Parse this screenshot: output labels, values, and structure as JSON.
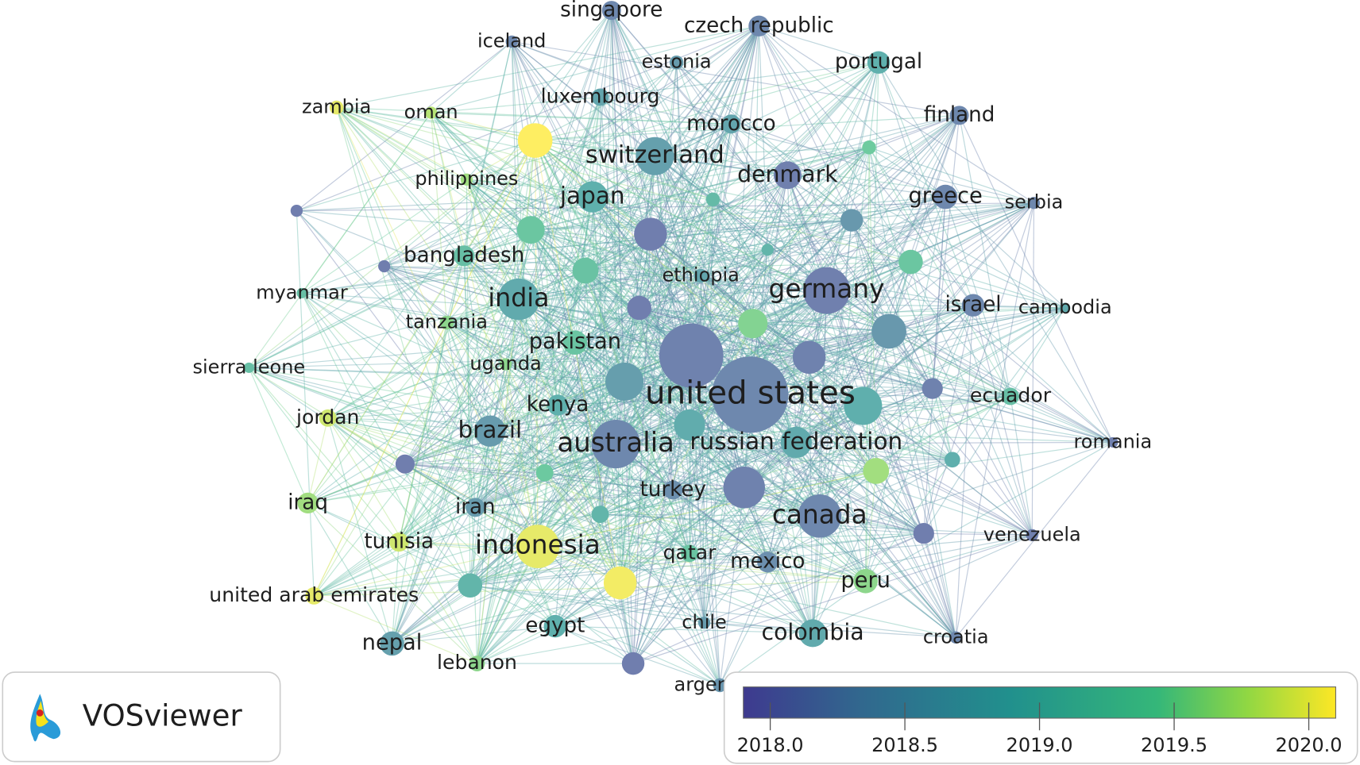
{
  "network": {
    "nodes": [
      {
        "label": "united states",
        "year": 2018.2
      },
      {
        "label": "germany",
        "year": 2018.1
      },
      {
        "label": "india",
        "year": 2018.8
      },
      {
        "label": "australia",
        "year": 2018.2
      },
      {
        "label": "canada",
        "year": 2018.2
      },
      {
        "label": "indonesia",
        "year": 2020.0
      },
      {
        "label": "switzerland",
        "year": 2018.6
      },
      {
        "label": "japan",
        "year": 2018.9
      },
      {
        "label": "brazil",
        "year": 2018.5
      },
      {
        "label": "russian federation",
        "year": 2018.8
      },
      {
        "label": "bangladesh",
        "year": 2019.2
      },
      {
        "label": "pakistan",
        "year": 2019.3
      },
      {
        "label": "kenya",
        "year": 2018.9
      },
      {
        "label": "ethiopia",
        "year": 2018.7
      },
      {
        "label": "denmark",
        "year": 2018.1
      },
      {
        "label": "greece",
        "year": 2018.2
      },
      {
        "label": "israel",
        "year": 2018.2
      },
      {
        "label": "finland",
        "year": 2018.2
      },
      {
        "label": "portugal",
        "year": 2018.9
      },
      {
        "label": "czech republic",
        "year": 2018.2
      },
      {
        "label": "singapore",
        "year": 2018.2
      },
      {
        "label": "iceland",
        "year": 2018.2
      },
      {
        "label": "estonia",
        "year": 2018.5
      },
      {
        "label": "luxembourg",
        "year": 2018.7
      },
      {
        "label": "morocco",
        "year": 2018.7
      },
      {
        "label": "zambia",
        "year": 2020.0
      },
      {
        "label": "oman",
        "year": 2019.8
      },
      {
        "label": "philippines",
        "year": 2019.7
      },
      {
        "label": "myanmar",
        "year": 2019.2
      },
      {
        "label": "tanzania",
        "year": 2019.6
      },
      {
        "label": "sierra leone",
        "year": 2019.2
      },
      {
        "label": "uganda",
        "year": 2019.6
      },
      {
        "label": "jordan",
        "year": 2019.9
      },
      {
        "label": "iraq",
        "year": 2019.7
      },
      {
        "label": "iran",
        "year": 2018.5
      },
      {
        "label": "tunisia",
        "year": 2019.9
      },
      {
        "label": "united arab emirates",
        "year": 2020.0
      },
      {
        "label": "nepal",
        "year": 2018.6
      },
      {
        "label": "lebanon",
        "year": 2019.6
      },
      {
        "label": "egypt",
        "year": 2018.9
      },
      {
        "label": "qatar",
        "year": 2019.3
      },
      {
        "label": "turkey",
        "year": 2018.3
      },
      {
        "label": "mexico",
        "year": 2018.3
      },
      {
        "label": "peru",
        "year": 2019.6
      },
      {
        "label": "colombia",
        "year": 2018.8
      },
      {
        "label": "chile",
        "year": 2018.5
      },
      {
        "label": "argentina",
        "year": 2018.4
      },
      {
        "label": "croatia",
        "year": 2018.2
      },
      {
        "label": "venezuela",
        "year": 2018.1
      },
      {
        "label": "romania",
        "year": 2018.1
      },
      {
        "label": "ecuador",
        "year": 2019.2
      },
      {
        "label": "cambodia",
        "year": 2018.8
      },
      {
        "label": "serbia",
        "year": 2018.2
      }
    ]
  },
  "logo_text": "VOSviewer",
  "color_scale": {
    "range": [
      2017.9,
      2020.1
    ],
    "ticks": [
      {
        "value": 2018,
        "label": "2018.0"
      },
      {
        "value": 2018.5,
        "label": "2018.5"
      },
      {
        "value": 2019,
        "label": "2019.0"
      },
      {
        "value": 2019.5,
        "label": "2019.5"
      },
      {
        "value": 2020,
        "label": "2020.0"
      }
    ]
  }
}
